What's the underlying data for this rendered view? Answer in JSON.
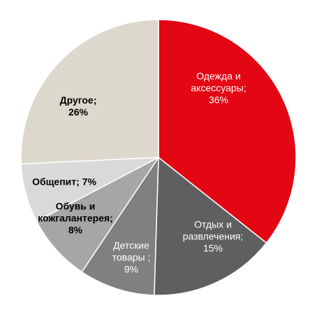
{
  "chart_data": {
    "type": "pie",
    "categories": [
      "Одежда и аксессуары;",
      "Отдых и развлечения;",
      "Детские товары ;",
      "Обувь и кожгалантерея;",
      "Общепит;",
      "Другое;"
    ],
    "values": [
      36,
      15,
      9,
      8,
      7,
      26
    ],
    "value_labels": [
      "36%",
      "15%",
      "9%",
      "8%",
      "7%",
      "26%"
    ],
    "colors": [
      "#e30613",
      "#5f5f62",
      "#808080",
      "#a6a6a6",
      "#d9d9d9",
      "#ddd8cc"
    ]
  }
}
